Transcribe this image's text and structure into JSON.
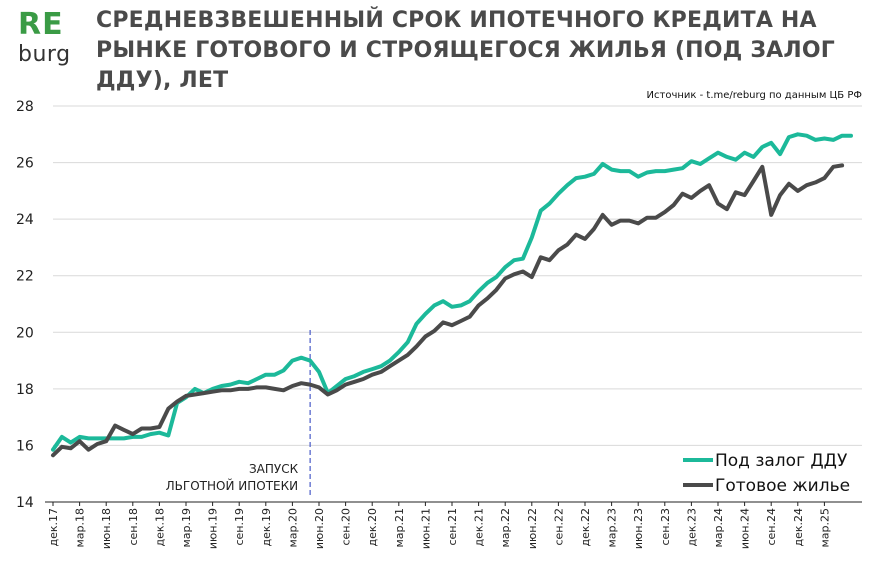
{
  "logo": {
    "top": "RE",
    "bottom": "burg",
    "top_color": "#3a9b45"
  },
  "chart_data": {
    "type": "line",
    "title": "СРЕДНЕВЗВЕШЕННЫЙ СРОК ИПОТЕЧНОГО КРЕДИТА НА РЫНКЕ ГОТОВОГО И СТРОЯЩЕГОСЯ ЖИЛЬЯ (ПОД ЗАЛОГ ДДУ), ЛЕТ",
    "source": "Источник  - t.me/reburg по данным  ЦБ РФ",
    "ylim": [
      14,
      28
    ],
    "yticks": [
      14,
      16,
      18,
      20,
      22,
      24,
      26,
      28
    ],
    "x_start": "дек.17",
    "x_tick_labels": [
      "дек.17",
      "мар.18",
      "июн.18",
      "сен.18",
      "дек.18",
      "мар.19",
      "июн.19",
      "сен.19",
      "дек.19",
      "мар.20",
      "июн.20",
      "сен.20",
      "дек.20",
      "мар.21",
      "июн.21",
      "сен.21",
      "дек.21",
      "мар.22",
      "июн.22",
      "сен.22",
      "дек.22",
      "мар.23",
      "июн.23",
      "сен.23",
      "дек.23",
      "мар.24",
      "июн.24",
      "сен.24",
      "дек.24",
      "мар.25"
    ],
    "annotation": {
      "lines": [
        "ЗАПУСК",
        "ЛЬГОТНОЙ ИПОТЕКИ"
      ],
      "month_index": 29
    },
    "series": [
      {
        "name": "Под залог ДДУ",
        "color": "#1cb99a",
        "values": [
          15.85,
          16.3,
          16.1,
          16.3,
          16.25,
          16.25,
          16.25,
          16.25,
          16.25,
          16.3,
          16.3,
          16.4,
          16.45,
          16.35,
          17.5,
          17.7,
          18.0,
          17.85,
          18.0,
          18.1,
          18.15,
          18.25,
          18.2,
          18.35,
          18.5,
          18.5,
          18.65,
          19.0,
          19.1,
          19.0,
          18.6,
          17.85,
          18.1,
          18.35,
          18.45,
          18.6,
          18.7,
          18.8,
          19.0,
          19.3,
          19.65,
          20.3,
          20.65,
          20.95,
          21.1,
          20.9,
          20.95,
          21.1,
          21.45,
          21.75,
          21.95,
          22.3,
          22.55,
          22.6,
          23.35,
          24.3,
          24.55,
          24.9,
          25.2,
          25.45,
          25.5,
          25.6,
          25.95,
          25.75,
          25.7,
          25.7,
          25.5,
          25.65,
          25.7,
          25.7,
          25.75,
          25.8,
          26.05,
          25.95,
          26.15,
          26.35,
          26.2,
          26.1,
          26.35,
          26.2,
          26.55,
          26.7,
          26.3,
          26.9,
          27.0,
          26.95,
          26.8,
          26.85,
          26.8,
          26.95,
          26.95
        ]
      },
      {
        "name": "Готовое жилье",
        "color": "#4a4a4a",
        "values": [
          15.65,
          15.95,
          15.9,
          16.15,
          15.85,
          16.05,
          16.15,
          16.7,
          16.55,
          16.4,
          16.6,
          16.6,
          16.65,
          17.3,
          17.55,
          17.75,
          17.8,
          17.85,
          17.9,
          17.95,
          17.95,
          18.0,
          18.0,
          18.05,
          18.05,
          18.0,
          17.95,
          18.1,
          18.2,
          18.15,
          18.05,
          17.8,
          17.95,
          18.15,
          18.25,
          18.35,
          18.5,
          18.6,
          18.8,
          19.0,
          19.2,
          19.5,
          19.85,
          20.05,
          20.35,
          20.25,
          20.4,
          20.55,
          20.95,
          21.2,
          21.5,
          21.9,
          22.05,
          22.15,
          21.95,
          22.65,
          22.55,
          22.9,
          23.1,
          23.45,
          23.3,
          23.65,
          24.15,
          23.8,
          23.95,
          23.95,
          23.85,
          24.05,
          24.05,
          24.25,
          24.5,
          24.9,
          24.75,
          25.0,
          25.2,
          24.55,
          24.35,
          24.95,
          24.85,
          25.35,
          25.85,
          24.15,
          24.85,
          25.25,
          25.0,
          25.2,
          25.3,
          25.45,
          25.85,
          25.9
        ]
      }
    ],
    "legend": {
      "position": "bottom-right"
    }
  }
}
